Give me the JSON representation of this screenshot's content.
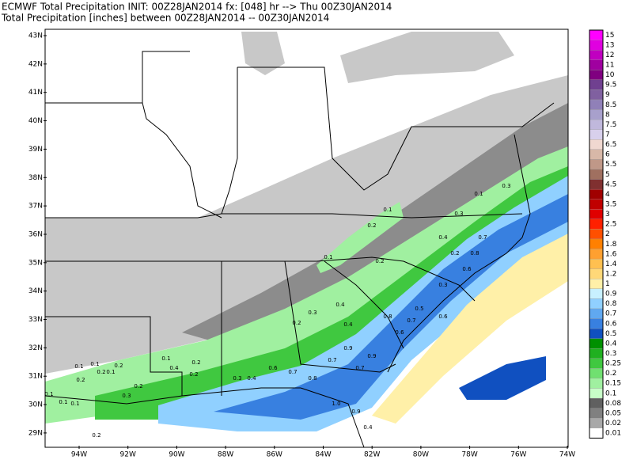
{
  "header": {
    "lines": [
      "ECMWF Total Precipitation INIT: 00Z28JAN2014 fx: [048] hr --> Thu 00Z30JAN2014",
      "Total Precipitation [inches] between 00Z28JAN2014 -- 00Z30JAN2014"
    ]
  },
  "map": {
    "lat_labels": [
      "43N",
      "42N",
      "41N",
      "40N",
      "39N",
      "38N",
      "37N",
      "36N",
      "35N",
      "34N",
      "33N",
      "32N",
      "31N",
      "30N",
      "29N"
    ],
    "lon_labels": [
      "94W",
      "92W",
      "90W",
      "88W",
      "86W",
      "84W",
      "82W",
      "80W",
      "78W",
      "76W",
      "74W"
    ],
    "stations": [
      "0.1",
      "0.1",
      "0.1",
      "0.1",
      "0.2",
      "0.1",
      "0.2",
      "0.1",
      "0.2",
      "0.2",
      "0.3",
      "0.2",
      "0.1",
      "0.4",
      "0.2",
      "0.2",
      "0.3",
      "0.4",
      "0.6",
      "0.7",
      "0.8",
      "0.7",
      "0.9",
      "0.7",
      "0.9",
      "0.8",
      "0.6",
      "0.7",
      "0.5",
      "0.3",
      "0.2",
      "0.4",
      "0.3",
      "0.6",
      "0.8",
      "0.7",
      "0.1",
      "0.2",
      "0.1",
      "0.4",
      "0.2",
      "0.3",
      "0.4",
      "1.0",
      "0.9",
      "0.4",
      "0.6",
      "0.2",
      "0.1",
      "0.3"
    ]
  },
  "colorbar": {
    "entries": [
      {
        "label": "15",
        "color": "#ff00ff"
      },
      {
        "label": "13",
        "color": "#e000e0"
      },
      {
        "label": "12",
        "color": "#c000c0"
      },
      {
        "label": "11",
        "color": "#a000a0"
      },
      {
        "label": "10",
        "color": "#800080"
      },
      {
        "label": "9.5",
        "color": "#704090"
      },
      {
        "label": "9",
        "color": "#8060a0"
      },
      {
        "label": "8.5",
        "color": "#9080b8"
      },
      {
        "label": "8",
        "color": "#a8a0cc"
      },
      {
        "label": "7.5",
        "color": "#c0b8dc"
      },
      {
        "label": "7",
        "color": "#d8d0ec"
      },
      {
        "label": "6.5",
        "color": "#f0d8d0"
      },
      {
        "label": "6",
        "color": "#d8b8a8"
      },
      {
        "label": "5.5",
        "color": "#c09888"
      },
      {
        "label": "5",
        "color": "#a07060"
      },
      {
        "label": "4.5",
        "color": "#803030"
      },
      {
        "label": "4",
        "color": "#a00000"
      },
      {
        "label": "3.5",
        "color": "#c00000"
      },
      {
        "label": "3",
        "color": "#e00000"
      },
      {
        "label": "2.5",
        "color": "#ff2000"
      },
      {
        "label": "2",
        "color": "#ff5000"
      },
      {
        "label": "1.8",
        "color": "#ff8000"
      },
      {
        "label": "1.6",
        "color": "#ffa030"
      },
      {
        "label": "1.4",
        "color": "#ffc050"
      },
      {
        "label": "1.2",
        "color": "#ffd878"
      },
      {
        "label": "1",
        "color": "#fff0a8"
      },
      {
        "label": "0.9",
        "color": "#c8f0ff"
      },
      {
        "label": "0.8",
        "color": "#90d0ff"
      },
      {
        "label": "0.7",
        "color": "#60a8f0"
      },
      {
        "label": "0.6",
        "color": "#3880e0"
      },
      {
        "label": "0.5",
        "color": "#1050c0"
      },
      {
        "label": "0.4",
        "color": "#009000"
      },
      {
        "label": "0.3",
        "color": "#20b020"
      },
      {
        "label": "0.25",
        "color": "#40c840"
      },
      {
        "label": "0.2",
        "color": "#70e070"
      },
      {
        "label": "0.15",
        "color": "#a0f0a0"
      },
      {
        "label": "0.1",
        "color": "#c8ffc8"
      },
      {
        "label": "0.08",
        "color": "#606060"
      },
      {
        "label": "0.05",
        "color": "#808080"
      },
      {
        "label": "0.02",
        "color": "#a8a8a8"
      },
      {
        "label": "0.01",
        "color": "#ffffff"
      }
    ]
  }
}
